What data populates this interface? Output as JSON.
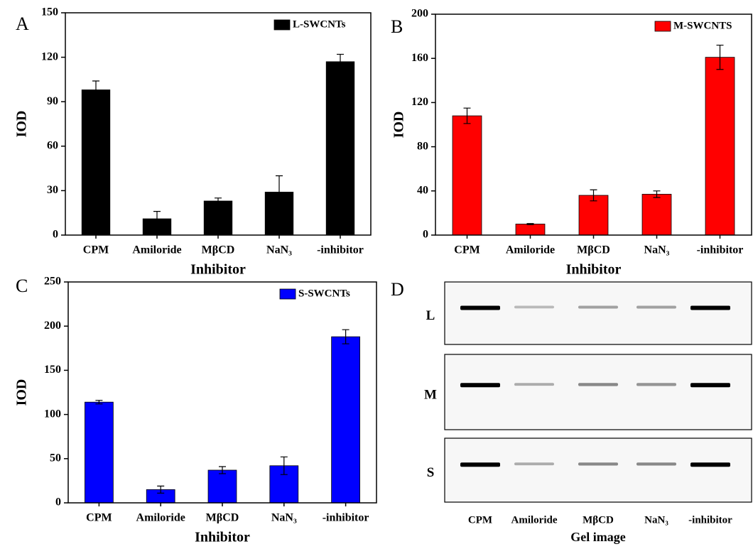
{
  "chart_data": [
    {
      "type": "bar",
      "panel_label": "A",
      "ylabel": "IOD",
      "xlabel": "Inhibitor",
      "categories": [
        "CPM",
        "Amiloride",
        "MβCD",
        "NaN₃",
        "-inhibitor"
      ],
      "series": [
        {
          "name": "L-SWCNTs",
          "color": "#000000",
          "values": [
            98,
            11,
            23,
            29,
            117
          ],
          "errors": [
            6,
            5,
            2,
            11,
            5
          ]
        }
      ],
      "ylim": [
        0,
        150
      ],
      "yticks": [
        0,
        30,
        60,
        90,
        120,
        150
      ],
      "legend": "top-right"
    },
    {
      "type": "bar",
      "panel_label": "B",
      "ylabel": "IOD",
      "xlabel": "Inhibitor",
      "categories": [
        "CPM",
        "Amiloride",
        "MβCD",
        "NaN₃",
        "-inhibitor"
      ],
      "series": [
        {
          "name": "M-SWCNTS",
          "color": "#ff0000",
          "values": [
            108,
            10,
            36,
            37,
            161
          ],
          "errors": [
            7,
            0.5,
            5,
            3,
            11
          ]
        }
      ],
      "ylim": [
        0,
        200
      ],
      "yticks": [
        0,
        40,
        80,
        120,
        160,
        200
      ],
      "legend": "top-right"
    },
    {
      "type": "bar",
      "panel_label": "C",
      "ylabel": "IOD",
      "xlabel": "Inhibitor",
      "categories": [
        "CPM",
        "Amiloride",
        "MβCD",
        "NaN₃",
        "-inhibitor"
      ],
      "series": [
        {
          "name": "S-SWCNTs",
          "color": "#0000ff",
          "values": [
            114,
            15,
            37,
            42,
            188
          ],
          "errors": [
            2,
            4,
            4,
            10,
            8
          ]
        }
      ],
      "ylim": [
        0,
        250
      ],
      "yticks": [
        0,
        50,
        100,
        150,
        200,
        250
      ],
      "legend": "top-right"
    }
  ],
  "gel": {
    "panel_label": "D",
    "rows": [
      "L",
      "M",
      "S"
    ],
    "lanes": [
      "CPM",
      "Amiloride",
      "MβCD",
      "NaN₃",
      "-inhibitor"
    ],
    "xlabel": "Gel image"
  }
}
